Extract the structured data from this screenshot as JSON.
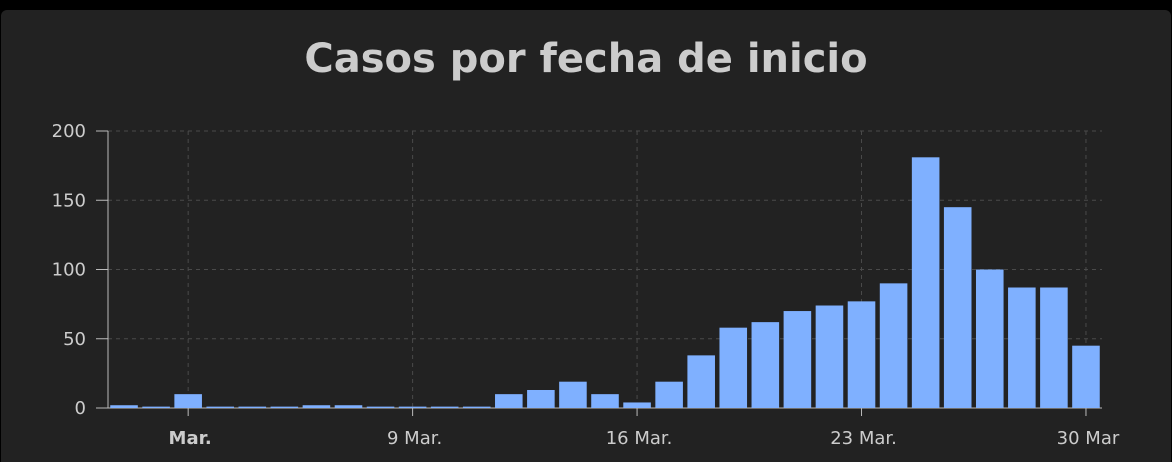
{
  "chart_data": {
    "type": "bar",
    "title": "Casos por fecha de inicio",
    "xlabel": "",
    "ylabel": "",
    "ylim": [
      0,
      200
    ],
    "y_ticks": [
      0,
      50,
      100,
      150,
      200
    ],
    "x_tick_labels": [
      {
        "label": "Mar.",
        "bold": true,
        "date": "2020-03-02"
      },
      {
        "label": "9 Mar.",
        "bold": false,
        "date": "2020-03-09"
      },
      {
        "label": "16 Mar.",
        "bold": false,
        "date": "2020-03-16"
      },
      {
        "label": "23 Mar.",
        "bold": false,
        "date": "2020-03-23"
      },
      {
        "label": "30 Mar",
        "bold": false,
        "date": "2020-03-30"
      }
    ],
    "grid": true,
    "bar_color": "#7fb0ff",
    "dates": [
      "2020-02-29",
      "2020-03-01",
      "2020-03-02",
      "2020-03-03",
      "2020-03-04",
      "2020-03-05",
      "2020-03-06",
      "2020-03-07",
      "2020-03-08",
      "2020-03-09",
      "2020-03-10",
      "2020-03-11",
      "2020-03-12",
      "2020-03-13",
      "2020-03-14",
      "2020-03-15",
      "2020-03-16",
      "2020-03-17",
      "2020-03-18",
      "2020-03-19",
      "2020-03-20",
      "2020-03-21",
      "2020-03-22",
      "2020-03-23",
      "2020-03-24",
      "2020-03-25",
      "2020-03-26",
      "2020-03-27",
      "2020-03-28",
      "2020-03-29",
      "2020-03-30"
    ],
    "values": [
      2,
      1,
      10,
      1,
      1,
      1,
      2,
      2,
      1,
      1,
      1,
      1,
      10,
      13,
      19,
      10,
      4,
      19,
      38,
      58,
      62,
      70,
      74,
      77,
      90,
      181,
      145,
      100,
      87,
      87,
      45
    ]
  }
}
